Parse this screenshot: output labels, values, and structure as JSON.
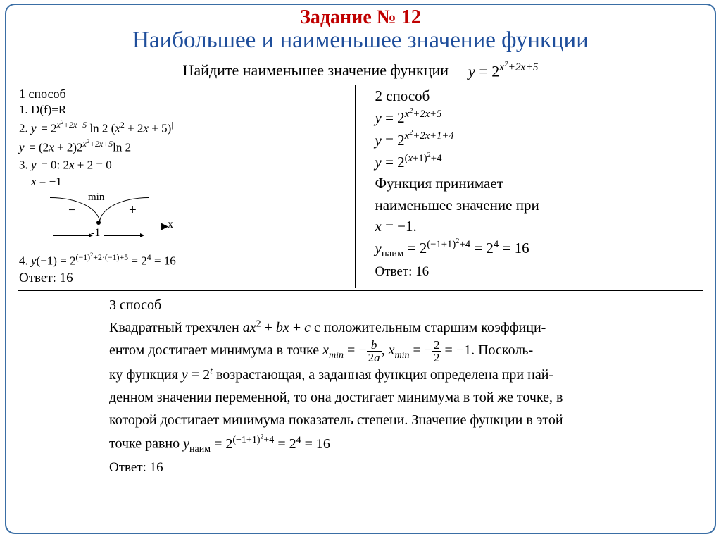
{
  "title_task": "Задание № 12",
  "title_main": "Наибольшее и наименьшее значение функции",
  "prompt_text": "Найдите наименьшее значение функции",
  "prompt_formula_html": "<span class='formula-inline'>y</span> = 2<span class='sup formula-inline'>x<span class='sup'>2</span>+2x+5</span>",
  "method1": {
    "label": "1 способ",
    "l1": "1. D(f)=R",
    "l2_html": "2. <span class='formula-inline'>y</span><span class='sup'>|</span> = 2<span class='sup formula-inline'>x<span class='sup'>2</span>+2x+5</span> ln 2 (<span class='formula-inline'>x</span><span class='sup'>2</span> + 2<span class='formula-inline'>x</span> + 5)<span class='sup'>|</span>",
    "l3_html": "<span class='formula-inline'>y</span><span class='sup'>|</span> = (2<span class='formula-inline'>x</span> + 2)2<span class='sup formula-inline'>x<span class='sup'>2</span>+2x+5</span>ln 2",
    "l4_html": "3. <span class='formula-inline'>y</span><span class='sup'>|</span> = 0: 2<span class='formula-inline'>x</span> + 2 = 0",
    "l5_html": "&nbsp;&nbsp;&nbsp;&nbsp;<span class='formula-inline'>x</span> = −1",
    "diagram": {
      "min": "min",
      "minus": "−",
      "plus": "+",
      "neg1": "-1",
      "x": "x"
    },
    "l6_html": "4. <span class='formula-inline'>y</span>(−1) = 2<span class='sup'>(−1)<span class='sup'>2</span>+2·(−1)+5</span> = 2<span class='sup'>4</span> = 16",
    "answer": "Ответ: 16"
  },
  "method2": {
    "label": "2 способ",
    "l1_html": "<span class='formula-inline'>y</span> = 2<span class='sup formula-inline'>x<span class='sup'>2</span>+2x+5</span>",
    "l2_html": "<span class='formula-inline'>y</span> = 2<span class='sup formula-inline'>x<span class='sup'>2</span>+2x+1+4</span>",
    "l3_html": "<span class='formula-inline'>y</span> = 2<span class='sup'>(<span class='formula-inline'>x</span>+1)<span class='sup'>2</span>+4</span>",
    "text1": "Функция принимает",
    "text2": "наименьшее значение при",
    "l4_html": "<span class='formula-inline'>x</span> = −1.",
    "l5_html": "<span class='formula-inline'>y</span><span class='sub'>наим</span> = 2<span class='sup'>(−1+1)<span class='sup'>2</span>+4</span> = 2<span class='sup'>4</span> = 16",
    "answer": "Ответ: 16"
  },
  "method3": {
    "label": "3 способ",
    "p1_a": "Квадратный трехчлен ",
    "p1_formula_html": "<span class='formula-inline'>ax</span><span class='sup'>2</span> + <span class='formula-inline'>bx</span> + <span class='formula-inline'>c</span>",
    "p1_b": " с положительным старшим коэффици-",
    "p2_a": "ентом достигает минимума в точке  ",
    "p2_f1_html": "<span class='formula-inline'>x<span class='sub'>min</span></span> = −<span class='frac'><span class='num'><span class='formula-inline'>b</span></span><span class='den'>2<span class='formula-inline'>a</span></span></span>",
    "p2_mid": ", ",
    "p2_f2_html": "<span class='formula-inline'>x<span class='sub'>min</span></span> = −<span class='frac'><span class='num'>2</span><span class='den'>2</span></span> = −1",
    "p2_b": ". Посколь-",
    "p3_a": "ку функция ",
    "p3_f_html": "<span class='formula-inline'>y</span> = 2<span class='sup formula-inline'>t</span>",
    "p3_b": " возрастающая, а заданная функция определена при най-",
    "p4": "денном значении переменной, то она достигает минимума  в той же точке, в",
    "p5": "которой достигает минимума показатель степени.  Значение функции в этой",
    "p6_a": "точке равно ",
    "p6_f_html": "<span class='formula-inline'>y</span><span class='sub'>наим</span> = 2<span class='sup'>(−1+1)<span class='sup'>2</span>+4</span> = 2<span class='sup'>4</span> = 16",
    "answer": "Ответ: 16"
  },
  "colors": {
    "title_task": "#c00000",
    "title_main": "#1f4e9b",
    "border": "#3a6ea5",
    "text": "#000000",
    "background": "#ffffff"
  }
}
